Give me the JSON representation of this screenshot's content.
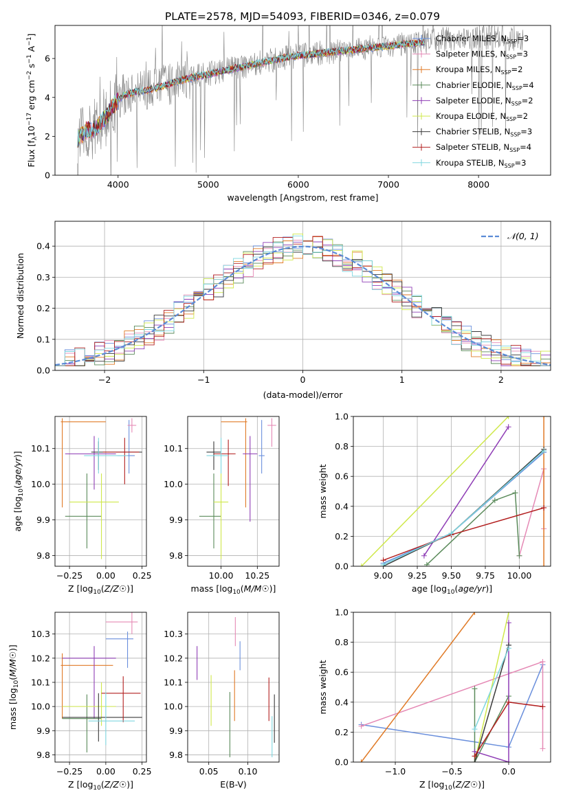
{
  "figure": {
    "title": "PLATE=2578, MJD=54093, FIBERID=0346, z=0.079"
  },
  "colors": {
    "Chabrier MILES": "#6a8fdc",
    "Salpeter MILES": "#e589b5",
    "Kroupa MILES": "#e07a26",
    "Chabrier ELODIE": "#5a8a5a",
    "Salpeter ELODIE": "#8e3cb5",
    "Kroupa ELODIE": "#cfe84a",
    "Chabrier STELIB": "#3a3a3a",
    "Salpeter STELIB": "#b21e1e",
    "Kroupa STELIB": "#7ed6df",
    "observed": "#808080",
    "normal": "#5b8bd6"
  },
  "chart_data": [
    {
      "id": "spectrum",
      "type": "line",
      "xlabel": "wavelength [Angstrom, rest frame]",
      "ylabel": "Flux [f$_\\lambda$10$^{-17}$ erg cm$^{-2}$ s$^{-1}$ A$^{-1}$]",
      "xlim": [
        3300,
        8800
      ],
      "ylim": [
        0,
        7.7
      ],
      "xticks": [
        4000,
        5000,
        6000,
        7000,
        8000
      ],
      "yticks": [
        0,
        2,
        4,
        6
      ],
      "grid": false,
      "legend_position": "top-right",
      "legend": [
        {
          "name": "Chabrier MILES",
          "label": "Chabrier MILES, N",
          "sub": "SSP",
          "tail": "=3"
        },
        {
          "name": "Salpeter MILES",
          "label": "Salpeter MILES, N",
          "sub": "SSP",
          "tail": "=3"
        },
        {
          "name": "Kroupa MILES",
          "label": "Kroupa MILES, N",
          "sub": "SSP",
          "tail": "=2"
        },
        {
          "name": "Chabrier ELODIE",
          "label": "Chabrier ELODIE, N",
          "sub": "SSP",
          "tail": "=4"
        },
        {
          "name": "Salpeter ELODIE",
          "label": "Salpeter ELODIE, N",
          "sub": "SSP",
          "tail": "=2"
        },
        {
          "name": "Kroupa ELODIE",
          "label": "Kroupa ELODIE, N",
          "sub": "SSP",
          "tail": "=2"
        },
        {
          "name": "Chabrier STELIB",
          "label": "Chabrier STELIB, N",
          "sub": "SSP",
          "tail": "=3"
        },
        {
          "name": "Salpeter STELIB",
          "label": "Salpeter STELIB, N",
          "sub": "SSP",
          "tail": "=4"
        },
        {
          "name": "Kroupa STELIB",
          "label": "Kroupa STELIB, N",
          "sub": "SSP",
          "tail": "=3"
        }
      ],
      "continuum": {
        "x": [
          3550,
          3650,
          3750,
          3850,
          3950,
          4050,
          4200,
          4350,
          4500,
          4700,
          4900,
          5100,
          5300,
          5500,
          5700,
          5900,
          6100,
          6300,
          6500,
          6700,
          6900,
          7100,
          7300,
          7500,
          7700,
          7900,
          8100,
          8300,
          8500
        ],
        "y": [
          1.9,
          2.3,
          2.4,
          2.9,
          3.6,
          4.1,
          4.3,
          4.4,
          4.6,
          4.9,
          5.1,
          5.3,
          5.5,
          5.7,
          5.9,
          6.1,
          6.2,
          6.3,
          6.4,
          6.5,
          6.6,
          6.7,
          6.8,
          6.95,
          7.0,
          7.05,
          7.1,
          7.05,
          7.0
        ]
      },
      "model_range": [
        3550,
        7400
      ],
      "observed_range": [
        3550,
        8500
      ]
    },
    {
      "id": "residuals",
      "type": "step",
      "xlabel": "(data-model)/error",
      "ylabel": "Normed distribution",
      "xlim": [
        -2.5,
        2.5
      ],
      "ylim": [
        0,
        0.48
      ],
      "xticks": [
        -2,
        -1,
        0,
        1,
        2
      ],
      "yticks": [
        0.0,
        0.1,
        0.2,
        0.3,
        0.4
      ],
      "grid": true,
      "legend_position": "top-right",
      "legend": [
        {
          "name": "normal",
          "label": "𝒩(0, 1)"
        }
      ],
      "bins": {
        "start": -2.5,
        "width": 0.1,
        "count": 50
      }
    },
    {
      "id": "age_vs_Z",
      "type": "errorbar",
      "xlabel": "Z [log₁₀(Z/Z☉)]",
      "ylabel": "age  [log₁₀(age/yr)]",
      "xlim": [
        -0.35,
        0.28
      ],
      "ylim": [
        9.77,
        10.19
      ],
      "xticks": [
        -0.25,
        0.0,
        0.25
      ],
      "yticks": [
        9.8,
        9.9,
        10.0,
        10.1
      ],
      "grid": true,
      "points": [
        {
          "model": "Chabrier MILES",
          "x": 0.16,
          "y": 10.08,
          "xerr": [
            0.08,
            0.04
          ],
          "yerr": [
            0.05,
            0.1
          ]
        },
        {
          "model": "Salpeter MILES",
          "x": 0.18,
          "y": 10.165,
          "xerr": [
            0.03,
            0.03
          ],
          "yerr": [
            0.02,
            0.02
          ]
        },
        {
          "model": "Kroupa MILES",
          "x": -0.3,
          "y": 10.175,
          "xerr": [
            0.01,
            0.3
          ],
          "yerr": [
            0.24,
            0.01
          ]
        },
        {
          "model": "Chabrier ELODIE",
          "x": -0.13,
          "y": 9.91,
          "xerr": [
            0.15,
            0.1
          ],
          "yerr": [
            0.09,
            0.12
          ]
        },
        {
          "model": "Salpeter ELODIE",
          "x": -0.08,
          "y": 10.085,
          "xerr": [
            0.2,
            0.15
          ],
          "yerr": [
            0.1,
            0.05
          ]
        },
        {
          "model": "Kroupa ELODIE",
          "x": -0.03,
          "y": 9.95,
          "xerr": [
            0.22,
            0.12
          ],
          "yerr": [
            0.16,
            0.08
          ]
        },
        {
          "model": "Chabrier STELIB",
          "x": -0.05,
          "y": 10.09,
          "xerr": [
            0.05,
            0.3
          ],
          "yerr": [
            0.05,
            0.03
          ]
        },
        {
          "model": "Salpeter STELIB",
          "x": 0.13,
          "y": 10.09,
          "xerr": [
            0.15,
            0.1
          ],
          "yerr": [
            0.09,
            0.04
          ]
        },
        {
          "model": "Kroupa STELIB",
          "x": -0.05,
          "y": 10.08,
          "xerr": [
            0.1,
            0.2
          ],
          "yerr": [
            0.05,
            0.05
          ]
        }
      ]
    },
    {
      "id": "age_vs_mass",
      "type": "errorbar",
      "xlabel": "mass [log₁₀(M/M☉)]",
      "ylabel": "",
      "xlim": [
        9.77,
        10.4
      ],
      "ylim": [
        9.77,
        10.19
      ],
      "xticks": [
        10.0,
        10.25
      ],
      "yticks": [
        9.8,
        9.9,
        10.0,
        10.1
      ],
      "grid": true,
      "points": [
        {
          "model": "Chabrier MILES",
          "x": 10.28,
          "y": 10.08,
          "xerr": [
            0.02,
            0.02
          ],
          "yerr": [
            0.05,
            0.1
          ]
        },
        {
          "model": "Salpeter MILES",
          "x": 10.35,
          "y": 10.165,
          "xerr": [
            0.03,
            0.03
          ],
          "yerr": [
            0.06,
            0.02
          ]
        },
        {
          "model": "Kroupa MILES",
          "x": 10.17,
          "y": 10.175,
          "xerr": [
            0.17,
            0.01
          ],
          "yerr": [
            0.24,
            0.01
          ]
        },
        {
          "model": "Chabrier ELODIE",
          "x": 9.95,
          "y": 9.91,
          "xerr": [
            0.1,
            0.05
          ],
          "yerr": [
            0.09,
            0.12
          ]
        },
        {
          "model": "Salpeter ELODIE",
          "x": 10.2,
          "y": 10.085,
          "xerr": [
            0.05,
            0.05
          ],
          "yerr": [
            0.19,
            0.05
          ]
        },
        {
          "model": "Kroupa ELODIE",
          "x": 10.0,
          "y": 9.95,
          "xerr": [
            0.05,
            0.05
          ],
          "yerr": [
            0.16,
            0.08
          ]
        },
        {
          "model": "Chabrier STELIB",
          "x": 9.95,
          "y": 10.09,
          "xerr": [
            0.05,
            0.05
          ],
          "yerr": [
            0.05,
            0.03
          ]
        },
        {
          "model": "Salpeter STELIB",
          "x": 10.05,
          "y": 10.085,
          "xerr": [
            0.1,
            0.05
          ],
          "yerr": [
            0.09,
            0.04
          ]
        },
        {
          "model": "Kroupa STELIB",
          "x": 10.0,
          "y": 10.08,
          "xerr": [
            0.1,
            0.05
          ],
          "yerr": [
            0.05,
            0.05
          ]
        }
      ]
    },
    {
      "id": "mass_weight_vs_age",
      "type": "line",
      "xlabel": "age  [log₁₀(age/yr)]",
      "ylabel": "mass weight",
      "xlim": [
        8.78,
        10.23
      ],
      "ylim": [
        0,
        1
      ],
      "xticks": [
        9.0,
        9.25,
        9.5,
        9.75,
        10.0
      ],
      "yticks": [
        0.0,
        0.2,
        0.4,
        0.6,
        0.8,
        1.0
      ],
      "grid": true,
      "series": [
        {
          "model": "Chabrier MILES",
          "x": [
            9.0,
            9.5,
            10.18
          ],
          "y": [
            0.02,
            0.22,
            0.76
          ]
        },
        {
          "model": "Salpeter MILES",
          "x": [
            10.0,
            10.18,
            10.18
          ],
          "y": [
            0.07,
            0.65,
            0.25
          ]
        },
        {
          "model": "Kroupa MILES",
          "x": [
            10.18,
            10.18
          ],
          "y": [
            0.0,
            1.0
          ]
        },
        {
          "model": "Chabrier ELODIE",
          "x": [
            9.32,
            9.82,
            9.97,
            10.0
          ],
          "y": [
            0.01,
            0.44,
            0.49,
            0.07
          ]
        },
        {
          "model": "Salpeter ELODIE",
          "x": [
            9.3,
            9.92
          ],
          "y": [
            0.07,
            0.93
          ]
        },
        {
          "model": "Kroupa ELODIE",
          "x": [
            8.84,
            9.92
          ],
          "y": [
            0.0,
            1.0
          ]
        },
        {
          "model": "Chabrier STELIB",
          "x": [
            9.0,
            9.5,
            10.18
          ],
          "y": [
            0.0,
            0.22,
            0.78
          ]
        },
        {
          "model": "Salpeter STELIB",
          "x": [
            9.0,
            9.5,
            10.18
          ],
          "y": [
            0.04,
            0.21,
            0.39
          ]
        },
        {
          "model": "Kroupa STELIB",
          "x": [
            9.0,
            9.5,
            10.18
          ],
          "y": [
            0.01,
            0.22,
            0.77
          ]
        }
      ]
    },
    {
      "id": "mass_vs_Z",
      "type": "errorbar",
      "xlabel": "Z [log₁₀(Z/Z☉)]",
      "ylabel": "mass [log₁₀(M/M☉)]",
      "xlim": [
        -0.35,
        0.28
      ],
      "ylim": [
        9.77,
        10.39
      ],
      "xticks": [
        -0.25,
        0.0,
        0.25
      ],
      "yticks": [
        9.8,
        9.9,
        10.0,
        10.1,
        10.2,
        10.3
      ],
      "grid": true,
      "points": [
        {
          "model": "Chabrier MILES",
          "x": 0.15,
          "y": 10.28,
          "xerr": [
            0.15,
            0.04
          ],
          "yerr": [
            0.12,
            0.03
          ]
        },
        {
          "model": "Salpeter MILES",
          "x": 0.18,
          "y": 10.35,
          "xerr": [
            0.18,
            0.04
          ],
          "yerr": [
            0.05,
            0.05
          ]
        },
        {
          "model": "Kroupa MILES",
          "x": -0.3,
          "y": 10.17,
          "xerr": [
            0.01,
            0.35
          ],
          "yerr": [
            0.22,
            0.05
          ]
        },
        {
          "model": "Chabrier ELODIE",
          "x": -0.13,
          "y": 9.95,
          "xerr": [
            0.17,
            0.1
          ],
          "yerr": [
            0.14,
            0.1
          ]
        },
        {
          "model": "Salpeter ELODIE",
          "x": -0.08,
          "y": 10.2,
          "xerr": [
            0.22,
            0.15
          ],
          "yerr": [
            0.25,
            0.05
          ]
        },
        {
          "model": "Kroupa ELODIE",
          "x": -0.03,
          "y": 10.0,
          "xerr": [
            0.27,
            0.1
          ],
          "yerr": [
            0.08,
            0.1
          ]
        },
        {
          "model": "Chabrier STELIB",
          "x": -0.05,
          "y": 9.955,
          "xerr": [
            0.25,
            0.3
          ],
          "yerr": [
            0.1,
            0.1
          ]
        },
        {
          "model": "Salpeter STELIB",
          "x": 0.12,
          "y": 10.055,
          "xerr": [
            0.15,
            0.12
          ],
          "yerr": [
            0.12,
            0.07
          ]
        },
        {
          "model": "Kroupa STELIB",
          "x": 0.0,
          "y": 9.94,
          "xerr": [
            0.12,
            0.2
          ],
          "yerr": [
            0.1,
            0.12
          ]
        }
      ]
    },
    {
      "id": "mass_vs_ebv",
      "type": "errorbar",
      "xlabel": "E(B-V)",
      "ylabel": "",
      "xlim": [
        0.023,
        0.14
      ],
      "ylim": [
        9.77,
        10.39
      ],
      "xticks": [
        0.05,
        0.1
      ],
      "yticks": [
        9.8,
        9.9,
        10.0,
        10.1,
        10.2,
        10.3
      ],
      "grid": true,
      "points": [
        {
          "model": "Chabrier MILES",
          "x": 0.09,
          "y": 10.21,
          "xerr": [
            0,
            0
          ],
          "yerr": [
            0.06,
            0.06
          ]
        },
        {
          "model": "Salpeter MILES",
          "x": 0.084,
          "y": 10.31,
          "xerr": [
            0,
            0
          ],
          "yerr": [
            0.06,
            0.06
          ]
        },
        {
          "model": "Kroupa MILES",
          "x": 0.083,
          "y": 10.05,
          "xerr": [
            0,
            0
          ],
          "yerr": [
            0.11,
            0.1
          ]
        },
        {
          "model": "Chabrier ELODIE",
          "x": 0.077,
          "y": 9.91,
          "xerr": [
            0,
            0
          ],
          "yerr": [
            0.12,
            0.15
          ]
        },
        {
          "model": "Salpeter ELODIE",
          "x": 0.035,
          "y": 10.18,
          "xerr": [
            0,
            0
          ],
          "yerr": [
            0.07,
            0.07
          ]
        },
        {
          "model": "Kroupa ELODIE",
          "x": 0.053,
          "y": 10.02,
          "xerr": [
            0,
            0
          ],
          "yerr": [
            0.1,
            0.11
          ]
        },
        {
          "model": "Chabrier STELIB",
          "x": 0.134,
          "y": 9.95,
          "xerr": [
            0,
            0
          ],
          "yerr": [
            0.1,
            0.1
          ]
        },
        {
          "model": "Salpeter STELIB",
          "x": 0.127,
          "y": 10.03,
          "xerr": [
            0,
            0
          ],
          "yerr": [
            0.09,
            0.09
          ]
        },
        {
          "model": "Kroupa STELIB",
          "x": 0.131,
          "y": 9.87,
          "xerr": [
            0,
            0
          ],
          "yerr": [
            0.08,
            0.09
          ]
        }
      ]
    },
    {
      "id": "mass_weight_vs_Z",
      "type": "line",
      "xlabel": "Z [log₁₀(Z/Z☉)]",
      "ylabel": "mass weight",
      "xlim": [
        -1.37,
        0.37
      ],
      "ylim": [
        0,
        1
      ],
      "xticks": [
        -1.0,
        -0.5,
        0.0
      ],
      "yticks": [
        0.0,
        0.2,
        0.4,
        0.6,
        0.8,
        1.0
      ],
      "grid": true,
      "series": [
        {
          "model": "Chabrier MILES",
          "x": [
            -1.3,
            0.0,
            0.3
          ],
          "y": [
            0.25,
            0.1,
            0.65
          ]
        },
        {
          "model": "Salpeter MILES",
          "x": [
            -1.3,
            0.3,
            0.3
          ],
          "y": [
            0.24,
            0.67,
            0.09
          ]
        },
        {
          "model": "Kroupa MILES",
          "x": [
            -1.3,
            -0.3
          ],
          "y": [
            0.0,
            1.0
          ]
        },
        {
          "model": "Chabrier ELODIE",
          "x": [
            -0.3,
            -0.3,
            0.0
          ],
          "y": [
            0.49,
            0.0,
            0.44
          ]
        },
        {
          "model": "Salpeter ELODIE",
          "x": [
            -0.3,
            0.0,
            0.0
          ],
          "y": [
            0.07,
            0.0,
            0.93
          ]
        },
        {
          "model": "Kroupa ELODIE",
          "x": [
            -0.3,
            0.0
          ],
          "y": [
            0.0,
            1.0
          ]
        },
        {
          "model": "Chabrier STELIB",
          "x": [
            -0.3,
            0.0,
            0.0
          ],
          "y": [
            0.0,
            0.78,
            0.78
          ]
        },
        {
          "model": "Salpeter STELIB",
          "x": [
            -0.3,
            0.0,
            0.3
          ],
          "y": [
            0.04,
            0.4,
            0.37
          ]
        },
        {
          "model": "Kroupa STELIB",
          "x": [
            -0.3,
            0.0
          ],
          "y": [
            0.22,
            0.76
          ]
        }
      ]
    }
  ]
}
